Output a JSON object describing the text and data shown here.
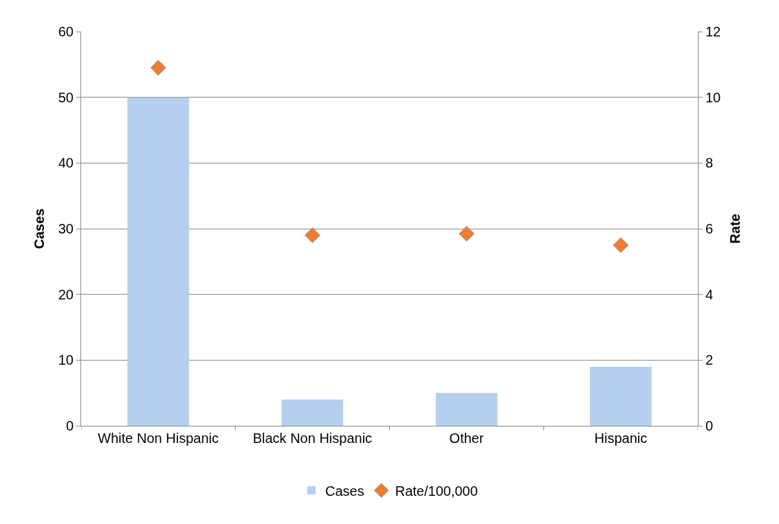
{
  "chart_data": {
    "type": "bar",
    "ylabel": "Cases",
    "y2label": "Rate",
    "categories": [
      "White Non Hispanic",
      "Black Non Hispanic",
      "Other",
      "Hispanic"
    ],
    "series": [
      {
        "name": "Cases",
        "color": "#b4d0ee",
        "values": [
          50,
          4,
          5,
          9
        ]
      },
      {
        "name": "Rate/100,000",
        "type": "scatter",
        "axis": "y2",
        "marker": "diamond",
        "color": "#ed7d31",
        "values": [
          10.9,
          5.8,
          5.85,
          5.5
        ]
      }
    ],
    "ylim": [
      0,
      60
    ],
    "yticks": [
      0,
      10,
      20,
      30,
      40,
      50,
      60
    ],
    "y2lim": [
      0,
      12
    ],
    "y2ticks": [
      0,
      2,
      4,
      6,
      8,
      10,
      12
    ],
    "grid": "y",
    "legend": "bottom"
  }
}
